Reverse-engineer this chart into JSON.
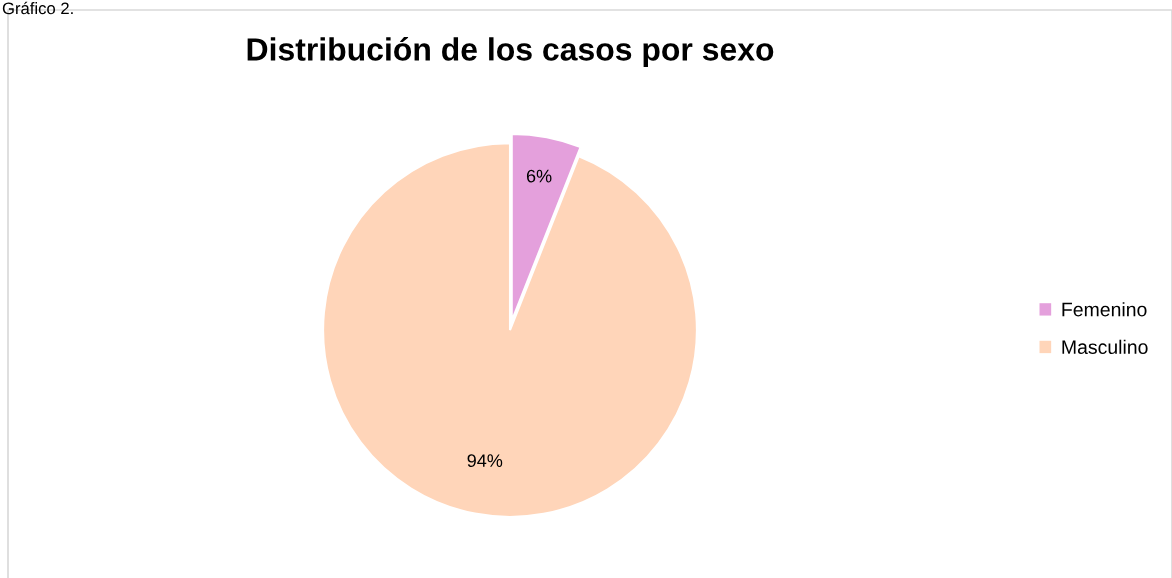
{
  "chart_data": {
    "type": "pie",
    "title": "Distribución de los casos por sexo",
    "annotations": [
      "Gráfico 2."
    ],
    "categories": [
      "Femenino",
      "Masculino"
    ],
    "values": [
      6,
      94
    ],
    "colors": [
      "#e4a0dc",
      "#ffd5b9"
    ],
    "value_labels": [
      "6%",
      "94%"
    ],
    "legend": "right"
  }
}
